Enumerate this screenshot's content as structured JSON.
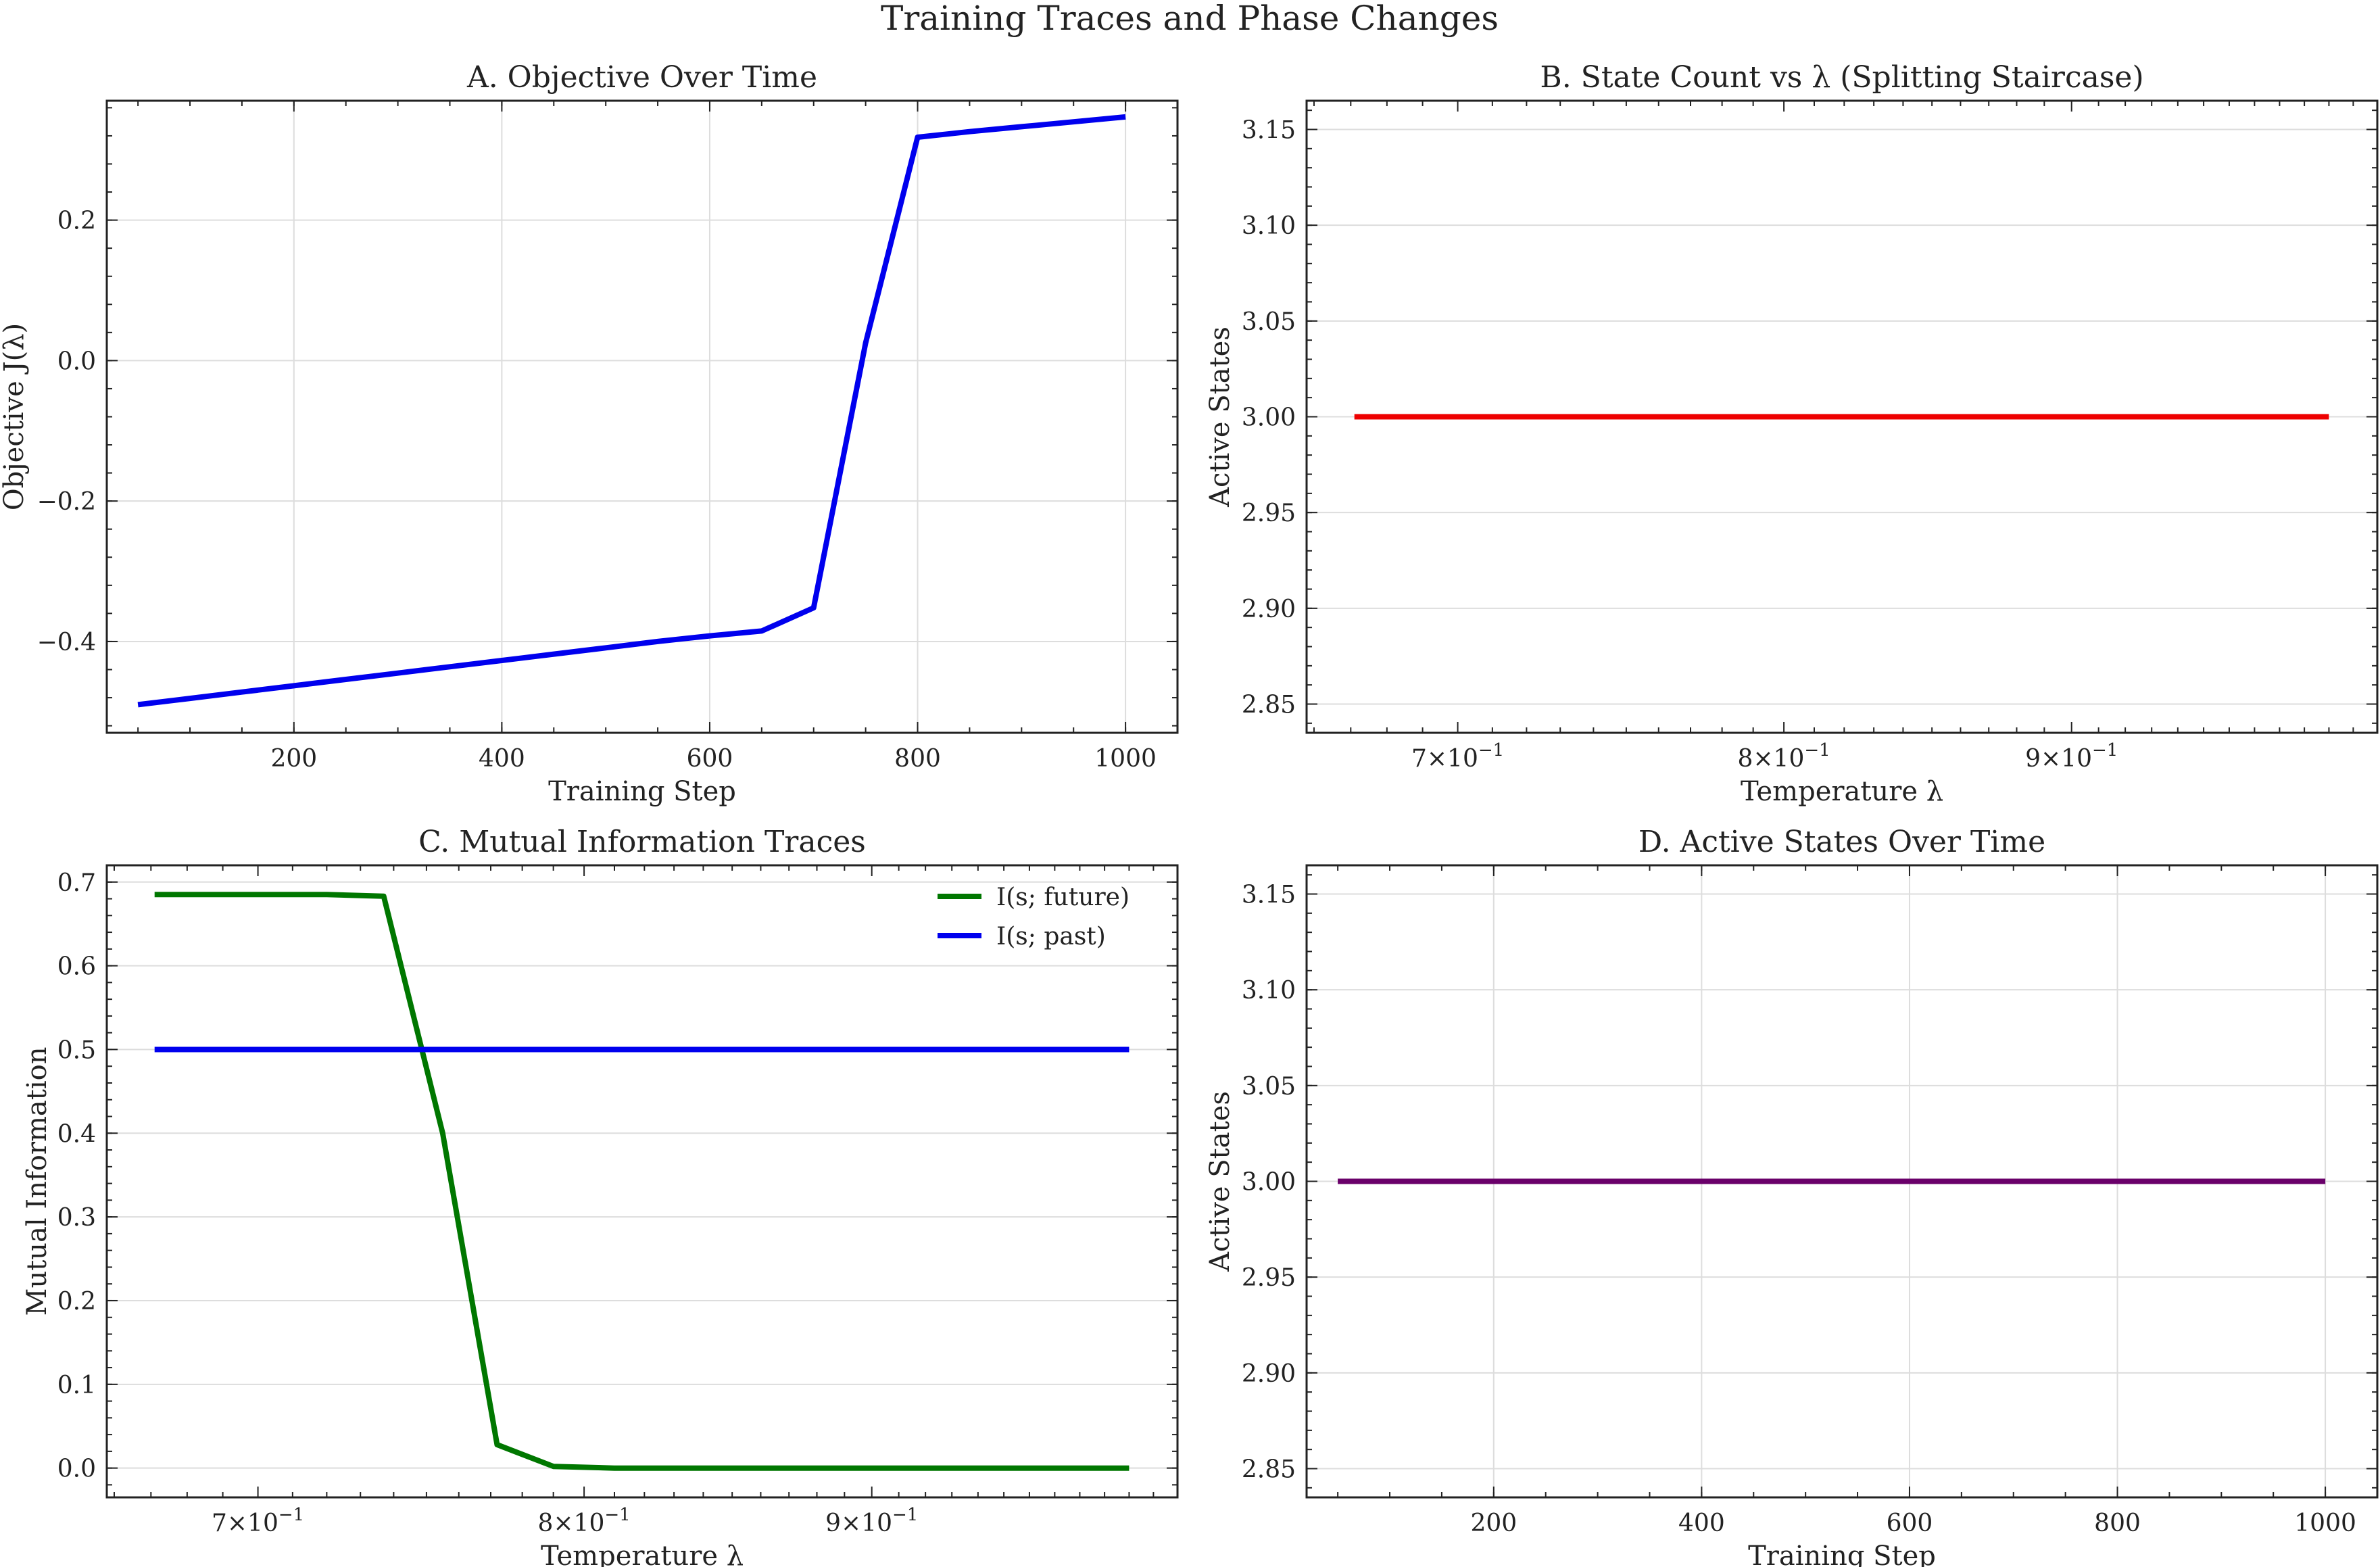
{
  "figure": {
    "suptitle": "Training Traces and Phase Changes"
  },
  "chart_data": [
    {
      "id": "A",
      "type": "line",
      "title": "A. Objective Over Time",
      "xlabel": "Training Step",
      "ylabel": "Objective J(λ)",
      "xscale": "linear",
      "yscale": "linear",
      "xlim": [
        20,
        1050
      ],
      "ylim": [
        -0.53,
        0.37
      ],
      "xticks": [
        200,
        400,
        600,
        800,
        1000
      ],
      "xticklabels": [
        "200",
        "400",
        "600",
        "800",
        "1000"
      ],
      "yticks": [
        -0.4,
        -0.2,
        0.0,
        0.2
      ],
      "yticklabels": [
        "−0.4",
        "−0.2",
        "0.0",
        "0.2"
      ],
      "grid": true,
      "series": [
        {
          "color": "#0000ee",
          "x": [
            50,
            100,
            150,
            200,
            250,
            300,
            350,
            400,
            450,
            500,
            550,
            600,
            650,
            700,
            750,
            800,
            850,
            900,
            950,
            1000
          ],
          "y": [
            -0.49,
            -0.481,
            -0.472,
            -0.463,
            -0.454,
            -0.445,
            -0.436,
            -0.427,
            -0.418,
            -0.409,
            -0.4,
            -0.392,
            -0.385,
            -0.352,
            0.025,
            0.318,
            0.326,
            0.333,
            0.34,
            0.347
          ]
        }
      ]
    },
    {
      "id": "B",
      "type": "line",
      "title": "B. State Count vs λ (Splitting Staircase)",
      "xlabel": "Temperature λ",
      "ylabel": "Active States",
      "xscale": "log",
      "yscale": "linear",
      "xlim": [
        0.658,
        1.02
      ],
      "ylim": [
        2.835,
        3.165
      ],
      "xticks": [
        0.7,
        0.8,
        0.9
      ],
      "xticklabels": [
        {
          "base": "7",
          "exp": "−1"
        },
        {
          "base": "8",
          "exp": "−1"
        },
        {
          "base": "9",
          "exp": "−1"
        }
      ],
      "yticks": [
        2.85,
        2.9,
        2.95,
        3.0,
        3.05,
        3.1,
        3.15
      ],
      "yticklabels": [
        "2.85",
        "2.90",
        "2.95",
        "3.00",
        "3.05",
        "3.10",
        "3.15"
      ],
      "grid": true,
      "grid_axis": "y",
      "series": [
        {
          "color": "#ee0000",
          "x": [
            0.671,
            0.7,
            0.75,
            0.8,
            0.85,
            0.9,
            0.95,
            1.0
          ],
          "y": [
            3.0,
            3.0,
            3.0,
            3.0,
            3.0,
            3.0,
            3.0,
            3.0
          ]
        }
      ]
    },
    {
      "id": "C",
      "type": "line",
      "title": "C. Mutual Information Traces",
      "xlabel": "Temperature λ",
      "ylabel": "Mutual Information",
      "xscale": "log",
      "yscale": "linear",
      "xlim": [
        0.658,
        1.02
      ],
      "ylim": [
        -0.035,
        0.72
      ],
      "xticks": [
        0.7,
        0.8,
        0.9
      ],
      "xticklabels": [
        {
          "base": "7",
          "exp": "−1"
        },
        {
          "base": "8",
          "exp": "−1"
        },
        {
          "base": "9",
          "exp": "−1"
        }
      ],
      "yticks": [
        0.0,
        0.1,
        0.2,
        0.3,
        0.4,
        0.5,
        0.6,
        0.7
      ],
      "yticklabels": [
        "0.0",
        "0.1",
        "0.2",
        "0.3",
        "0.4",
        "0.5",
        "0.6",
        "0.7"
      ],
      "grid": true,
      "grid_axis": "y",
      "legend": "top-right",
      "series": [
        {
          "name": "I(s; future)",
          "color": "#007700",
          "x": [
            0.671,
            0.72,
            0.737,
            0.755,
            0.772,
            0.79,
            0.81,
            0.85,
            0.9,
            0.95,
            1.0
          ],
          "y": [
            0.685,
            0.685,
            0.683,
            0.4,
            0.028,
            0.002,
            0.0,
            0.0,
            0.0,
            0.0,
            0.0
          ]
        },
        {
          "name": "I(s; past)",
          "color": "#0000ee",
          "x": [
            0.671,
            0.75,
            0.8,
            0.85,
            0.9,
            0.95,
            1.0
          ],
          "y": [
            0.5,
            0.5,
            0.5,
            0.5,
            0.5,
            0.5,
            0.5
          ]
        }
      ]
    },
    {
      "id": "D",
      "type": "line",
      "title": "D. Active States Over Time",
      "xlabel": "Training Step",
      "ylabel": "Active States",
      "xscale": "linear",
      "yscale": "linear",
      "xlim": [
        20,
        1050
      ],
      "ylim": [
        2.835,
        3.165
      ],
      "xticks": [
        200,
        400,
        600,
        800,
        1000
      ],
      "xticklabels": [
        "200",
        "400",
        "600",
        "800",
        "1000"
      ],
      "yticks": [
        2.85,
        2.9,
        2.95,
        3.0,
        3.05,
        3.1,
        3.15
      ],
      "yticklabels": [
        "2.85",
        "2.90",
        "2.95",
        "3.00",
        "3.05",
        "3.10",
        "3.15"
      ],
      "grid": true,
      "series": [
        {
          "color": "#6a006a",
          "x": [
            50,
            200,
            400,
            600,
            800,
            1000
          ],
          "y": [
            3.0,
            3.0,
            3.0,
            3.0,
            3.0,
            3.0
          ]
        }
      ]
    }
  ]
}
